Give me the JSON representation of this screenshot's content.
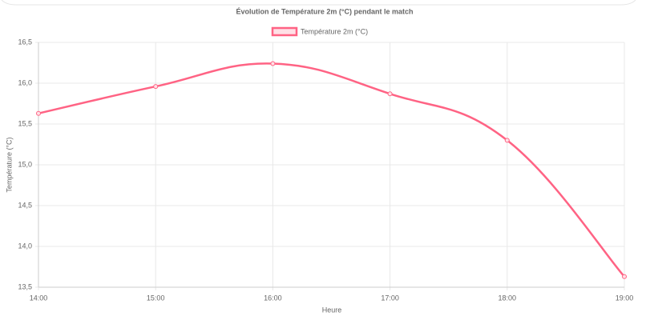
{
  "chart_data": {
    "type": "line",
    "title": "Évolution de Température 2m (°C) pendant le match",
    "x_label": "Heure",
    "y_label": "Température (°C)",
    "categories": [
      "14:00",
      "15:00",
      "16:00",
      "17:00",
      "18:00",
      "19:00"
    ],
    "series": [
      {
        "name": "Température 2m (°C)",
        "color": "#ff6384",
        "values": [
          15.63,
          15.96,
          16.24,
          15.87,
          15.3,
          13.63
        ]
      }
    ],
    "ylim": [
      13.5,
      16.5
    ],
    "yticks": [
      {
        "value": 13.5,
        "label": "13,5"
      },
      {
        "value": 14.0,
        "label": "14,0"
      },
      {
        "value": 14.5,
        "label": "14,5"
      },
      {
        "value": 15.0,
        "label": "15,0"
      },
      {
        "value": 15.5,
        "label": "15,5"
      },
      {
        "value": 16.0,
        "label": "16,0"
      },
      {
        "value": 16.5,
        "label": "16,5"
      }
    ],
    "grid": true,
    "legend": "top"
  }
}
